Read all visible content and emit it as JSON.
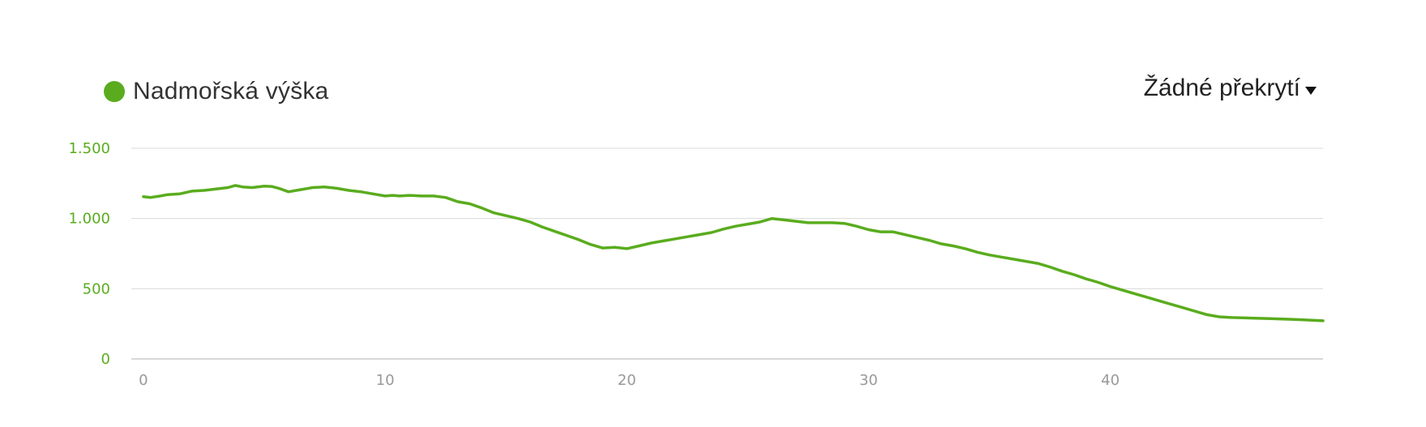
{
  "legend": {
    "label": "Nadmořská výška"
  },
  "overlay": {
    "label": "Žádné překrytí"
  },
  "colors": {
    "series": "#5aac1e",
    "grid": "#d9d9d9",
    "axis": "#cccccc",
    "ytick": "#5aac1e",
    "xtick": "#999999"
  },
  "chart_data": {
    "type": "area",
    "xlim": [
      -0.5,
      48.8
    ],
    "ylim": [
      0,
      1500
    ],
    "yticks": [
      0,
      500,
      1000,
      1500
    ],
    "ytick_labels": [
      "0",
      "500",
      "1.000",
      "1.500"
    ],
    "xticks": [
      0,
      10,
      20,
      30,
      40
    ],
    "xtick_labels": [
      "0",
      "10",
      "20",
      "30",
      "40"
    ],
    "grid": true,
    "legend_position": "top-left",
    "series": [
      {
        "name": "Nadmořská výška",
        "x": [
          0,
          0.3,
          0.7,
          1,
          1.5,
          2,
          2.5,
          3,
          3.5,
          3.8,
          4.1,
          4.5,
          5,
          5.3,
          5.6,
          6,
          6.5,
          7,
          7.5,
          8,
          8.5,
          9,
          9.5,
          10,
          10.3,
          10.6,
          11,
          11.5,
          12,
          12.5,
          13,
          13.5,
          14,
          14.5,
          15,
          15.5,
          16,
          16.5,
          17,
          17.5,
          18,
          18.5,
          19,
          19.5,
          20,
          20.5,
          21,
          21.5,
          22,
          22.5,
          23,
          23.5,
          24,
          24.5,
          25,
          25.5,
          26,
          26.5,
          27,
          27.5,
          28,
          28.5,
          29,
          29.5,
          30,
          30.5,
          31,
          31.5,
          32,
          32.5,
          33,
          33.5,
          34,
          34.5,
          35,
          35.5,
          36,
          36.5,
          37,
          37.5,
          38,
          38.5,
          39,
          39.5,
          40,
          40.5,
          41,
          41.5,
          42,
          42.5,
          43,
          43.5,
          44,
          44.5,
          45,
          45.5,
          46,
          46.5,
          47,
          47.5,
          48,
          48.8
        ],
        "y": [
          1155,
          1150,
          1160,
          1170,
          1175,
          1195,
          1200,
          1210,
          1220,
          1235,
          1225,
          1220,
          1230,
          1228,
          1215,
          1190,
          1205,
          1220,
          1225,
          1215,
          1200,
          1190,
          1175,
          1160,
          1165,
          1160,
          1165,
          1160,
          1160,
          1150,
          1120,
          1105,
          1075,
          1040,
          1020,
          1000,
          975,
          940,
          910,
          880,
          850,
          815,
          790,
          795,
          785,
          805,
          825,
          840,
          855,
          870,
          885,
          900,
          925,
          945,
          960,
          975,
          1000,
          990,
          980,
          970,
          970,
          970,
          965,
          945,
          920,
          905,
          905,
          885,
          865,
          845,
          820,
          805,
          785,
          760,
          740,
          725,
          710,
          695,
          680,
          655,
          625,
          600,
          570,
          545,
          515,
          490,
          465,
          440,
          415,
          390,
          365,
          340,
          315,
          300,
          295,
          293,
          290,
          288,
          285,
          282,
          278,
          272
        ]
      }
    ]
  }
}
